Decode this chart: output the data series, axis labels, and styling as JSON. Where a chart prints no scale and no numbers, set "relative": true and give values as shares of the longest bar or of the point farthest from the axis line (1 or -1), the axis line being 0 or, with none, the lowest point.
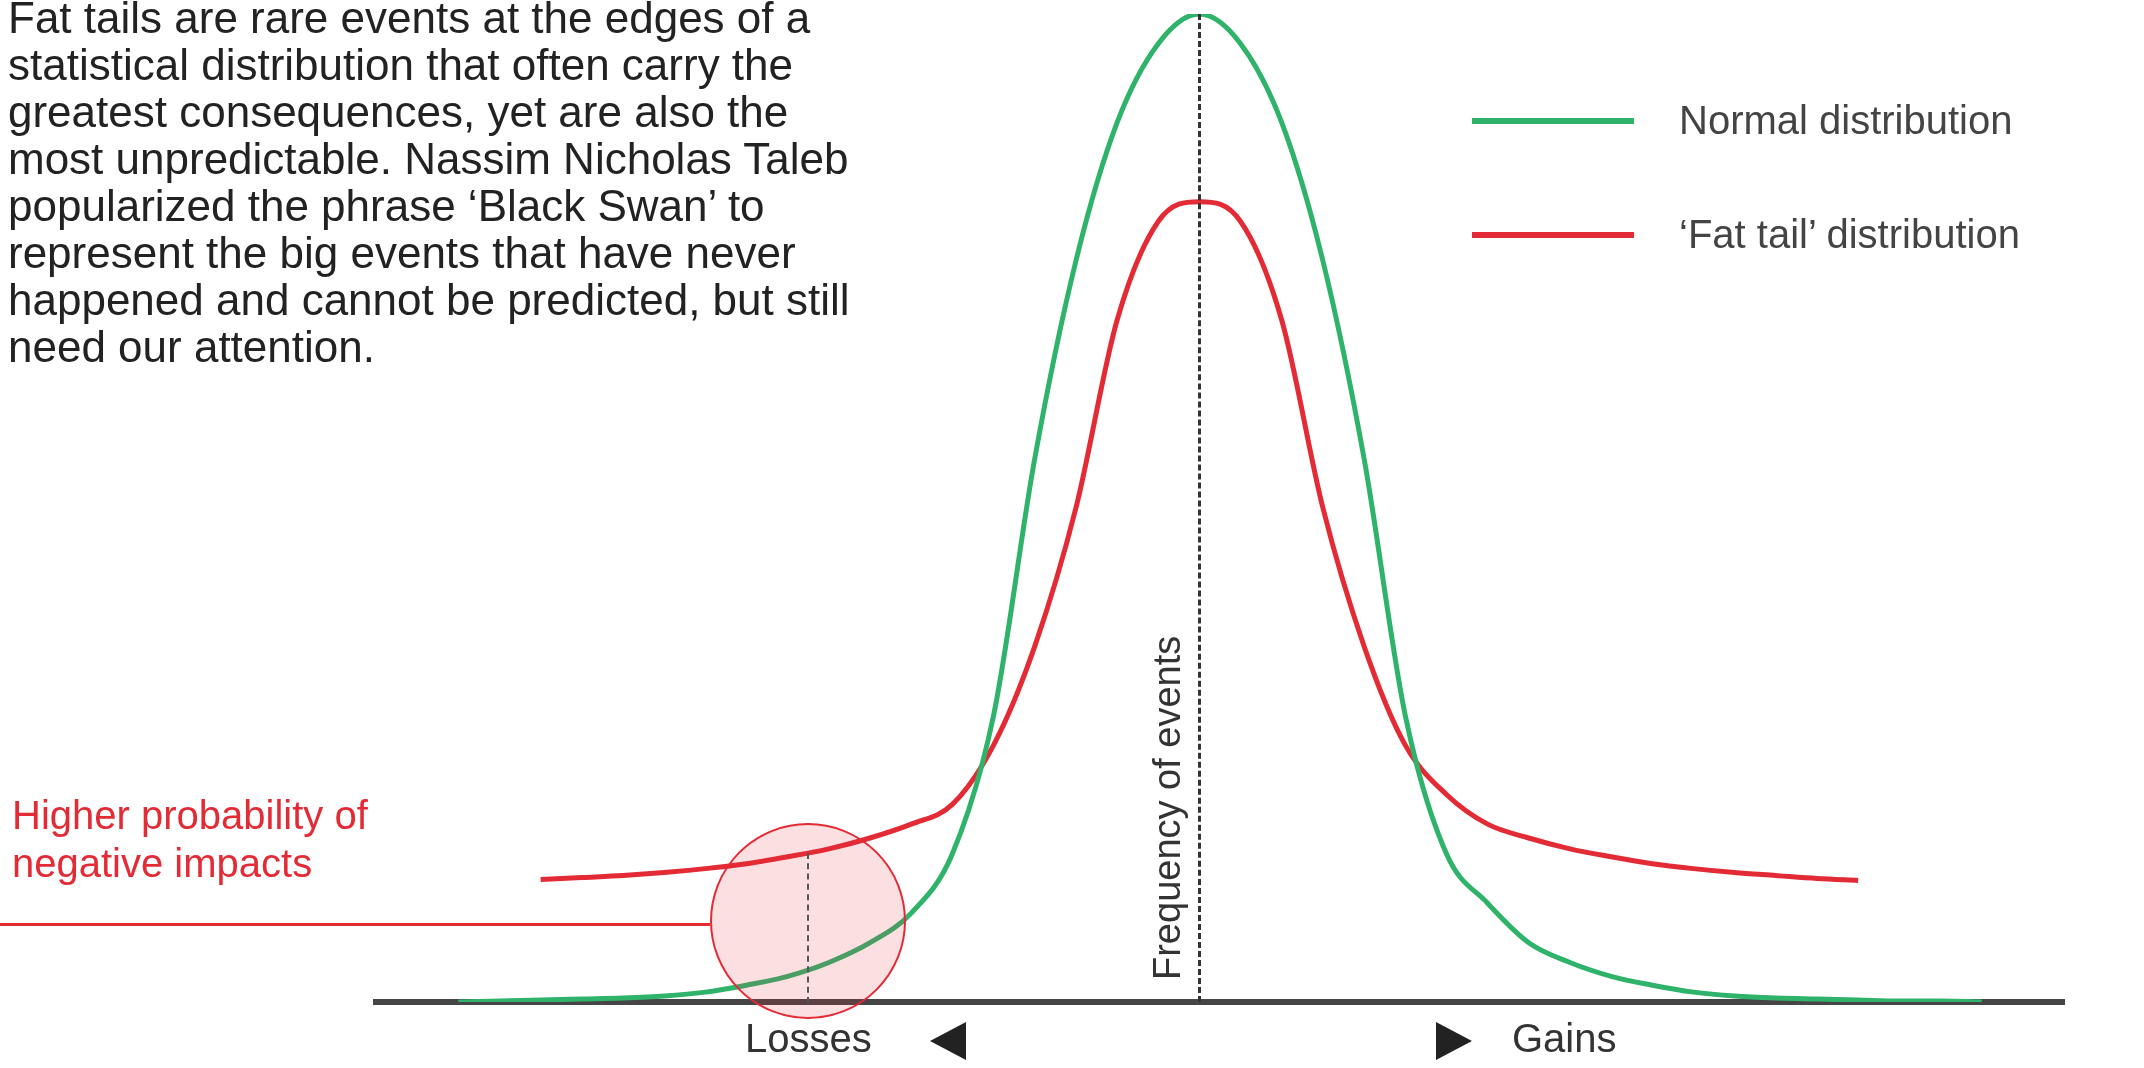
{
  "chart_data": {
    "type": "line",
    "relative": true,
    "tick_labels": false,
    "legend": "top right",
    "ylabel": "Frequency of events",
    "categories": [
      null,
      null,
      null,
      null,
      null,
      null,
      null,
      null,
      null,
      null,
      null,
      null,
      null,
      null,
      null,
      null,
      null,
      null,
      null,
      null,
      null,
      null,
      null,
      null,
      null,
      null,
      null,
      null,
      null,
      null,
      null,
      null,
      null,
      null,
      null,
      null,
      null,
      null,
      null,
      null,
      null,
      null
    ],
    "series": [
      {
        "name": "Normal distribution",
        "color": "#2fb36b",
        "values": [
          null,
          null,
          0,
          0.001,
          0.002,
          0.003,
          0.004,
          0.006,
          0.01,
          0.017,
          0.026,
          0.04,
          0.06,
          0.09,
          0.15,
          0.29,
          0.55,
          0.75,
          0.89,
          0.97,
          1,
          0.97,
          0.89,
          0.75,
          0.55,
          0.29,
          0.15,
          0.1,
          0.06,
          0.04,
          0.026,
          0.017,
          0.01,
          0.006,
          0.004,
          0.003,
          0.002,
          0.001,
          0.001,
          0,
          null,
          null
        ]
      },
      {
        "name": "‘Fat tail’ distribution",
        "color": "#e32b36",
        "values": [
          null,
          null,
          null,
          null,
          0.124,
          0.126,
          0.128,
          0.131,
          0.135,
          0.14,
          0.147,
          0.155,
          0.166,
          0.18,
          0.2,
          0.26,
          0.36,
          0.5,
          0.69,
          0.79,
          0.81,
          0.79,
          0.69,
          0.5,
          0.36,
          0.26,
          0.21,
          0.18,
          0.166,
          0.155,
          0.147,
          0.14,
          0.135,
          0.131,
          0.128,
          0.125,
          0.123,
          null,
          null,
          null,
          null,
          null
        ]
      }
    ],
    "annotations": [
      "Fat tails are rare events at the edges of a statistical distribution that often carry the greatest consequences, yet are also the most unpredictable. Nassim Nicholas Taleb popularized the phrase ‘Black Swan’ to represent the big events that have never happened and cannot be predicted, but still need our attention.",
      "Higher probability of negative impacts",
      "Losses",
      "Gains"
    ]
  }
}
